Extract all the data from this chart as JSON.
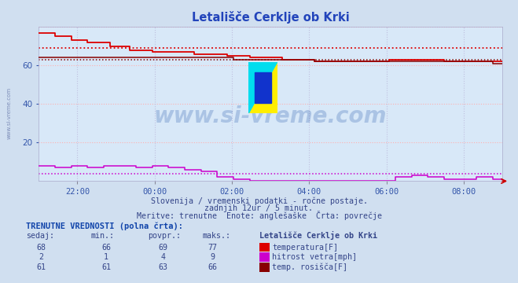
{
  "title": "Letališče Cerklje ob Krki",
  "bg_color": "#d0dff0",
  "plot_bg_color": "#d8e8f8",
  "x_ticks_labels": [
    "22:00",
    "00:00",
    "02:00",
    "04:00",
    "06:00",
    "08:00"
  ],
  "x_ticks_pos": [
    0.083,
    0.25,
    0.417,
    0.583,
    0.75,
    0.917
  ],
  "grid_color_h": "#ffb0b0",
  "grid_color_v": "#c0c0e0",
  "grid_style": ":",
  "watermark": "www.si-vreme.com",
  "subtitle1": "Slovenija / vremenski podatki - ročne postaje.",
  "subtitle2": "zadnjih 12ur / 5 minut.",
  "subtitle3": "Meritve: trenutne  Enote: anglešaške  Črta: povrečje",
  "table_header": "TRENUTNE VREDNOSTI (polna črta):",
  "col_headers": [
    "sedaj:",
    "min.:",
    "povpr.:",
    "maks.:",
    "Letališče Cerklje ob Krki"
  ],
  "rows": [
    {
      "sedaj": 68,
      "min": 66,
      "povpr": 69,
      "maks": 77,
      "label": "temperatura[F]",
      "color": "#dd0000"
    },
    {
      "sedaj": 2,
      "min": 1,
      "povpr": 4,
      "maks": 9,
      "label": "hitrost vetra[mph]",
      "color": "#cc00cc"
    },
    {
      "sedaj": 61,
      "min": 61,
      "povpr": 63,
      "maks": 66,
      "label": "temp. rosišča[F]",
      "color": "#880000"
    }
  ],
  "ylim": [
    0,
    80
  ],
  "yticks": [
    20,
    40,
    60
  ],
  "temp_color": "#dd0000",
  "wind_color": "#cc00cc",
  "dew_color": "#880000",
  "temp_avg_line": 69,
  "dew_avg_line": 63,
  "wind_avg_line": 4,
  "n_points": 144
}
